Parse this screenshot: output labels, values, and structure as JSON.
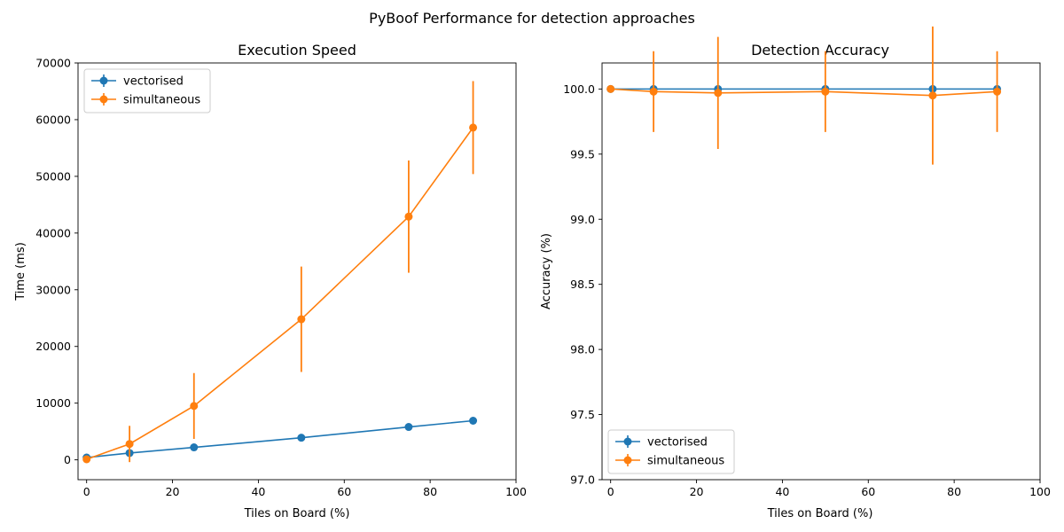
{
  "figure": {
    "suptitle": "PyBoof Performance for detection approaches"
  },
  "colors": {
    "vectorised": "#1f77b4",
    "simultaneous": "#ff7f0e"
  },
  "chart_data": [
    {
      "type": "line",
      "title": "Execution Speed",
      "xlabel": "Tiles on Board (%)",
      "ylabel": "Time (ms)",
      "xlim": [
        -2,
        100
      ],
      "ylim": [
        -3500,
        70000
      ],
      "xticks": [
        0,
        20,
        40,
        60,
        80,
        100
      ],
      "yticks": [
        0,
        10000,
        20000,
        30000,
        40000,
        50000,
        60000,
        70000
      ],
      "xtick_labels": [
        "0",
        "20",
        "40",
        "60",
        "80",
        "100"
      ],
      "ytick_labels": [
        "0",
        "10000",
        "20000",
        "30000",
        "40000",
        "50000",
        "60000",
        "70000"
      ],
      "grid": false,
      "legend": "top-left",
      "x": [
        0,
        10,
        25,
        50,
        75,
        90
      ],
      "series": [
        {
          "name": "vectorised",
          "values": [
            400,
            1200,
            2200,
            3900,
            5800,
            6900
          ],
          "err": [
            100,
            200,
            250,
            600,
            500,
            300
          ]
        },
        {
          "name": "simultaneous",
          "values": [
            100,
            2800,
            9500,
            24800,
            42900,
            58600
          ],
          "err": [
            100,
            3200,
            5800,
            9300,
            9900,
            8200
          ]
        }
      ]
    },
    {
      "type": "line",
      "title": "Detection Accuracy",
      "xlabel": "Tiles on Board (%)",
      "ylabel": "Accuracy (%)",
      "xlim": [
        -2,
        100
      ],
      "ylim": [
        97.0,
        100.2
      ],
      "xticks": [
        0,
        20,
        40,
        60,
        80,
        100
      ],
      "yticks": [
        97.0,
        97.5,
        98.0,
        98.5,
        99.0,
        99.5,
        100.0
      ],
      "xtick_labels": [
        "0",
        "20",
        "40",
        "60",
        "80",
        "100"
      ],
      "ytick_labels": [
        "97.0",
        "97.5",
        "98.0",
        "98.5",
        "99.0",
        "99.5",
        "100.0"
      ],
      "grid": false,
      "legend": "bottom-left",
      "x": [
        0,
        10,
        25,
        50,
        75,
        90
      ],
      "series": [
        {
          "name": "vectorised",
          "values": [
            100.0,
            100.0,
            100.0,
            100.0,
            100.0,
            100.0
          ],
          "err": [
            0,
            0,
            0,
            0,
            0,
            0
          ]
        },
        {
          "name": "simultaneous",
          "values": [
            100.0,
            99.98,
            99.97,
            99.98,
            99.95,
            99.98
          ],
          "err": [
            0,
            0.31,
            0.43,
            0.31,
            0.53,
            0.31
          ]
        }
      ]
    }
  ]
}
